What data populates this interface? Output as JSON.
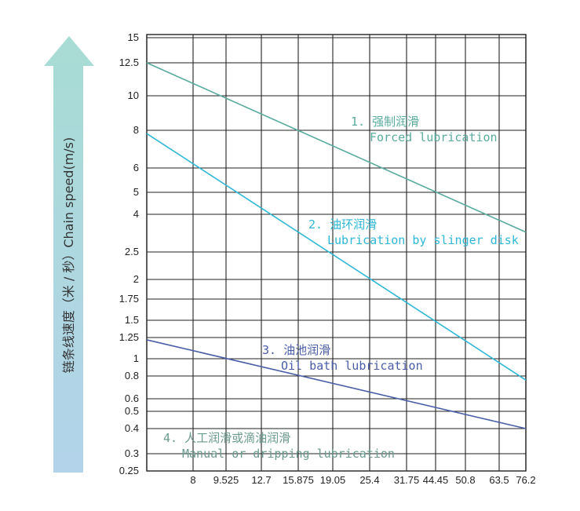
{
  "chart_data": {
    "type": "line",
    "ylabel": "链条线速度（米 / 秒）Chain speed(m/s)",
    "xlabel": "",
    "x_ticks": [
      "8",
      "9.525",
      "12.7",
      "15.875",
      "19.05",
      "25.4",
      "31.75",
      "44.45",
      "50.8",
      "63.5",
      "76.2"
    ],
    "y_ticks": [
      {
        "value": 15,
        "label": "15"
      },
      {
        "value": 12.5,
        "label": "12.5"
      },
      {
        "value": 10,
        "label": "10"
      },
      {
        "value": 8,
        "label": "8"
      },
      {
        "value": 6,
        "label": "6"
      },
      {
        "value": 5,
        "label": "5"
      },
      {
        "value": 4,
        "label": "4"
      },
      {
        "value": 2.5,
        "label": "2.5"
      },
      {
        "value": 2,
        "label": "2"
      },
      {
        "value": 1.75,
        "label": "1.75"
      },
      {
        "value": 1.5,
        "label": "1.5"
      },
      {
        "value": 1.25,
        "label": "1.25"
      },
      {
        "value": 1,
        "label": "1"
      },
      {
        "value": 0.8,
        "label": "0.8"
      },
      {
        "value": 0.6,
        "label": "0.6"
      },
      {
        "value": 0.5,
        "label": "0.5"
      },
      {
        "value": 0.4,
        "label": "0.4"
      },
      {
        "value": 0.3,
        "label": "0.3"
      },
      {
        "value": 0.25,
        "label": "0.25"
      }
    ],
    "grid": true,
    "series": [
      {
        "label_line1": "1. 强制润滑",
        "label_line2": "Forced lubrication",
        "color": "#5aab9e",
        "start_y": 12.5,
        "end_y": 3.2
      },
      {
        "label_line1": "2. 油环润滑",
        "label_line2": "Lubrication by slinger disk",
        "color": "#2eb7d6",
        "start_y": 7.8,
        "end_y": 0.76
      },
      {
        "label_line1": "3. 油池润滑",
        "label_line2": "Oil bath lubrication",
        "color": "#4a5ea8",
        "start_y": 1.22,
        "end_y": 0.4
      },
      {
        "label_line1": "4. 人工润滑或滴油润滑",
        "label_line2": "Manual or dripping lubrication",
        "color": "#6a9a8e",
        "start_y": null,
        "end_y": null
      }
    ],
    "arrow_color_top": "#a8dcd4",
    "arrow_color_bottom": "#b3d3ea"
  }
}
